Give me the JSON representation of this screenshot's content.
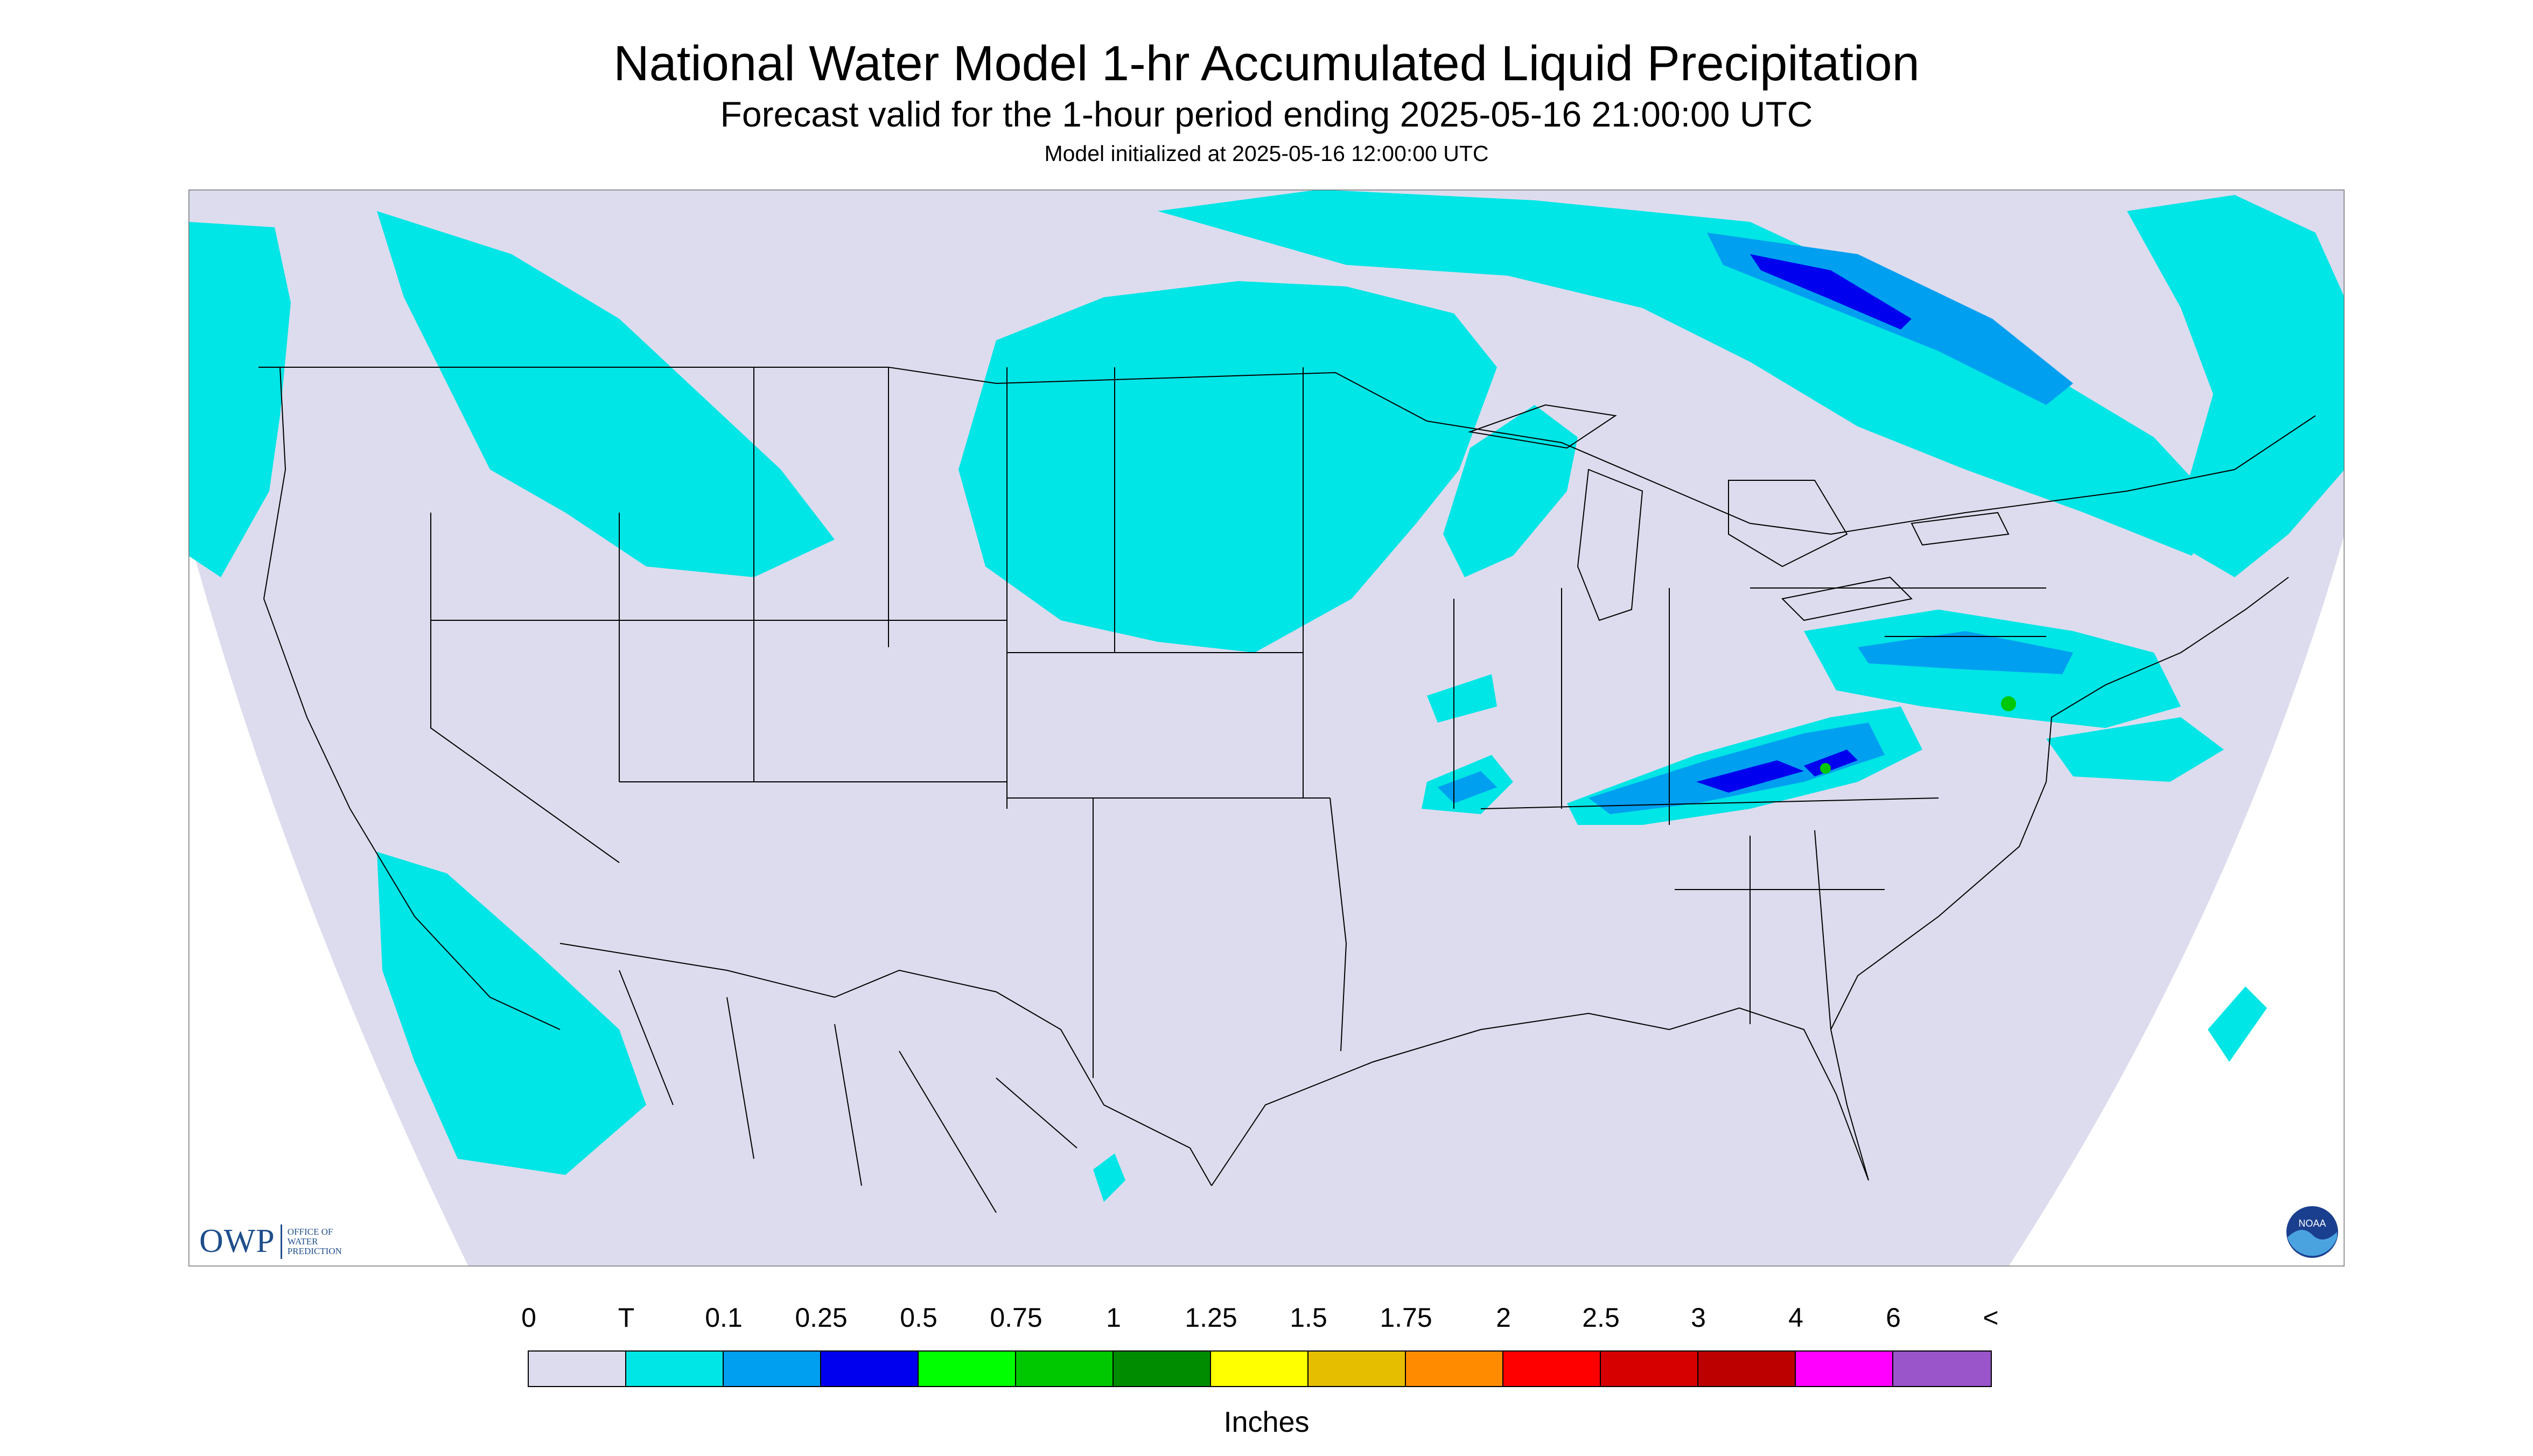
{
  "header": {
    "title": "National Water Model 1-hr Accumulated Liquid Precipitation",
    "subtitle": "Forecast valid for the 1-hour period ending 2025-05-16 21:00:00 UTC",
    "init": "Model initialized at 2025-05-16 12:00:00 UTC"
  },
  "legend": {
    "labels": [
      "0",
      "T",
      "0.1",
      "0.25",
      "0.5",
      "0.75",
      "1",
      "1.25",
      "1.5",
      "1.75",
      "2",
      "2.5",
      "3",
      "4",
      "6",
      "<"
    ],
    "colors": [
      "#dcdcee",
      "#00e5e5",
      "#009ff0",
      "#0000ee",
      "#00ff00",
      "#00c800",
      "#008c00",
      "#ffff00",
      "#e6be00",
      "#ff8c00",
      "#ff0000",
      "#d70000",
      "#bc0000",
      "#ff00ff",
      "#9955c9"
    ],
    "units": "Inches"
  },
  "logos": {
    "owp": "OWP",
    "owp_sub": "Office of Water Prediction",
    "noaa": "NOAA"
  },
  "colors": {
    "background": "#dcdcee",
    "trace": "#00e5e5",
    "light": "#009ff0",
    "moderate": "#0000ee",
    "outline": "#000000"
  }
}
